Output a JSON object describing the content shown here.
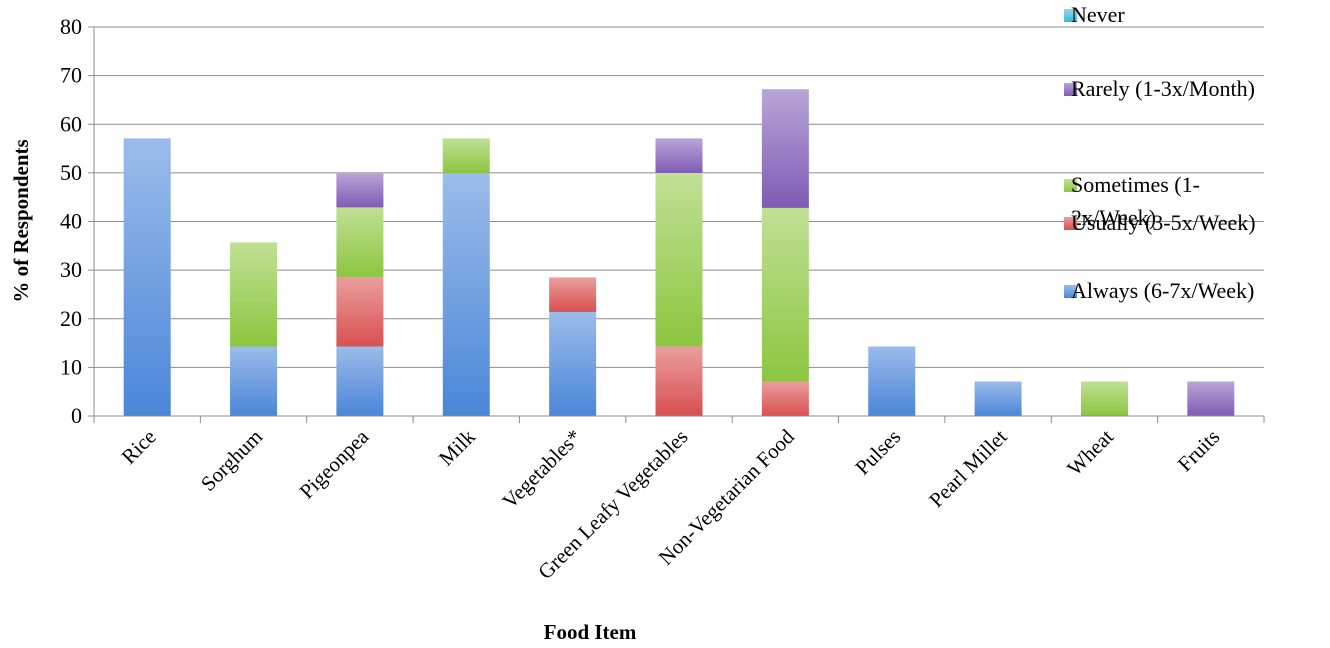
{
  "chart_data": {
    "type": "bar",
    "stacked": true,
    "title": "",
    "xlabel": "Food Item",
    "ylabel": "% of Respondents",
    "ylim": [
      0,
      80
    ],
    "yticks": [
      0,
      10,
      20,
      30,
      40,
      50,
      60,
      70,
      80
    ],
    "grid": true,
    "legend_position": "top-right",
    "categories": [
      "Rice",
      "Sorghum",
      "Pigeonpea",
      "Milk",
      "Vegetables*",
      "Green Leafy Vegetables",
      "Non-Vegetarian Food",
      "Pulses",
      "Pearl Millet",
      "Wheat",
      "Fruits"
    ],
    "series": [
      {
        "name": "Always (6-7x/Week)",
        "color": "#4a86d8",
        "values": [
          57.1,
          14.3,
          14.3,
          50.0,
          21.4,
          0,
          0,
          14.3,
          7.1,
          0,
          0
        ]
      },
      {
        "name": "Usually (3-5x/Week)",
        "color": "#d94f4f",
        "values": [
          0,
          0,
          14.3,
          0,
          7.1,
          14.3,
          7.1,
          0,
          0,
          0,
          0
        ]
      },
      {
        "name": "Sometimes (1-2x/Week)",
        "color": "#8cc63f",
        "values": [
          0,
          21.4,
          14.3,
          7.1,
          0,
          35.7,
          35.7,
          0,
          0,
          7.1,
          0
        ]
      },
      {
        "name": "Rarely (1-3x/Month)",
        "color": "#7f5bb5",
        "values": [
          0,
          0,
          7.1,
          0,
          0,
          7.1,
          24.4,
          0,
          0,
          0,
          7.1
        ]
      },
      {
        "name": "Never",
        "color": "#3bb8d8",
        "values": [
          0,
          0,
          0,
          0,
          0,
          0,
          0,
          0,
          0,
          0,
          0
        ]
      }
    ],
    "legend": [
      {
        "name": "Never",
        "lines": [
          "Never"
        ]
      },
      {
        "name": "Rarely (1-3x/Month)",
        "lines": [
          "Rarely (1-3x/Month)"
        ]
      },
      {
        "name": "Sometimes (1-2x/Week)",
        "lines": [
          "Sometimes (1-",
          "2x/Week)"
        ]
      },
      {
        "name": "Usually (3-5x/Week)",
        "lines": [
          "Usually (3-5x/Week)"
        ]
      },
      {
        "name": "Always (6-7x/Week)",
        "lines": [
          "Always (6-7x/Week)"
        ]
      }
    ]
  }
}
